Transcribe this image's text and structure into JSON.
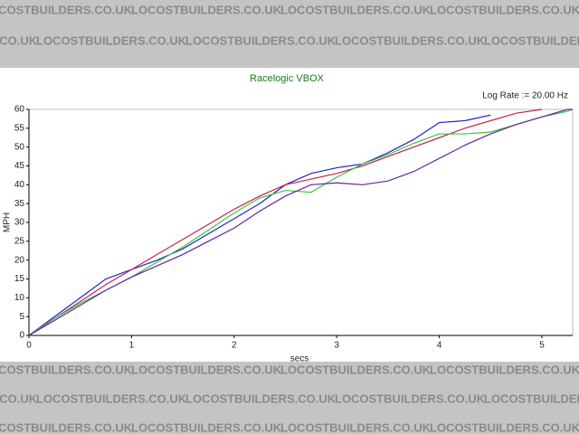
{
  "watermark": "LOCOSTBUILDERS.CO.UK",
  "chart_data": {
    "type": "line",
    "title": "Racelogic VBOX",
    "subtitle": "Log Rate := 20.00 Hz",
    "x_label": "secs",
    "y_label": "MPH",
    "x": [
      0,
      0.25,
      0.5,
      0.75,
      1,
      1.25,
      1.5,
      1.75,
      2,
      2.25,
      2.5,
      2.75,
      3,
      3.25,
      3.5,
      3.75,
      4,
      4.25,
      4.5,
      4.75,
      5,
      5.25,
      5.3
    ],
    "series": [
      {
        "color": "#2424c8",
        "values": [
          0,
          5,
          10,
          15,
          17.5,
          20,
          23,
          27,
          31,
          35,
          40,
          43,
          44.5,
          45.5,
          48.5,
          52,
          56.5,
          57,
          58.5,
          null,
          null,
          null,
          null
        ]
      },
      {
        "color": "#c42448",
        "values": [
          0,
          4.5,
          9,
          13.5,
          17.5,
          21.5,
          25.5,
          29.5,
          33.5,
          37,
          40,
          41.5,
          43,
          45,
          47.5,
          50,
          52.5,
          55,
          57,
          59,
          60,
          null,
          null
        ]
      },
      {
        "color": "#3cc43c",
        "values": [
          0,
          4.5,
          8.5,
          12,
          15.5,
          19.5,
          23.5,
          28,
          32.5,
          36.5,
          38.5,
          38,
          42,
          45.5,
          48,
          51,
          53.5,
          53.5,
          54,
          56,
          58,
          59.5,
          60
        ]
      },
      {
        "color": "#6424a0",
        "values": [
          0,
          4,
          8,
          12,
          15.5,
          18.5,
          21.5,
          25,
          28.5,
          33,
          37,
          40,
          40.5,
          40,
          41,
          43.5,
          47,
          50.5,
          53.5,
          56,
          58,
          60,
          60
        ]
      }
    ],
    "xlim": [
      0,
      5.3
    ],
    "xticks": [
      0,
      1,
      2,
      3,
      4,
      5
    ],
    "ylim": [
      0,
      60
    ],
    "yticks": [
      0,
      5,
      10,
      15,
      20,
      25,
      30,
      35,
      40,
      45,
      50,
      55,
      60
    ],
    "grid": false
  }
}
